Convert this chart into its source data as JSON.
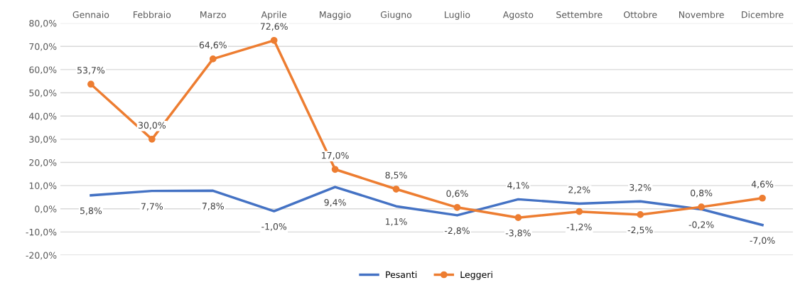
{
  "chart_data": {
    "type": "line",
    "categories": [
      "Gennaio",
      "Febbraio",
      "Marzo",
      "Aprile",
      "Maggio",
      "Giugno",
      "Luglio",
      "Agosto",
      "Settembre",
      "Ottobre",
      "Novembre",
      "Dicembre"
    ],
    "series": [
      {
        "name": "Pesanti",
        "color": "#4472c4",
        "marker": "none",
        "values": [
          5.8,
          7.7,
          7.8,
          -1.0,
          9.4,
          1.1,
          -2.8,
          4.1,
          2.2,
          3.2,
          -0.2,
          -7.0
        ],
        "value_labels": [
          "5,8%",
          "7,7%",
          "7,8%",
          "-1,0%",
          "9,4%",
          "1,1%",
          "-2,8%",
          "4,1%",
          "2,2%",
          "3,2%",
          "-0,2%",
          "-7,0%"
        ]
      },
      {
        "name": "Leggeri",
        "color": "#ed7d31",
        "marker": "circle",
        "values": [
          53.7,
          30.0,
          64.6,
          72.6,
          17.0,
          8.5,
          0.6,
          -3.8,
          -1.2,
          -2.5,
          0.8,
          4.6
        ],
        "value_labels": [
          "53,7%",
          "30,0%",
          "64,6%",
          "72,6%",
          "17,0%",
          "8,5%",
          "0,6%",
          "-3,8%",
          "-1,2%",
          "-2,5%",
          "0,8%",
          "4,6%"
        ]
      }
    ],
    "ylim": [
      -20,
      80
    ],
    "yticks": [
      {
        "value": -20,
        "label": "-20,0%"
      },
      {
        "value": -10,
        "label": "-10,0%"
      },
      {
        "value": 0,
        "label": "0,0%"
      },
      {
        "value": 10,
        "label": "10,0%"
      },
      {
        "value": 20,
        "label": "20,0%"
      },
      {
        "value": 30,
        "label": "30,0%"
      },
      {
        "value": 40,
        "label": "40,0%"
      },
      {
        "value": 50,
        "label": "50,0%"
      },
      {
        "value": 60,
        "label": "60,0%"
      },
      {
        "value": 70,
        "label": "70,0%"
      },
      {
        "value": 80,
        "label": "80,0%"
      }
    ],
    "grid": "y",
    "legend": "bottom",
    "line_style": "solid"
  }
}
